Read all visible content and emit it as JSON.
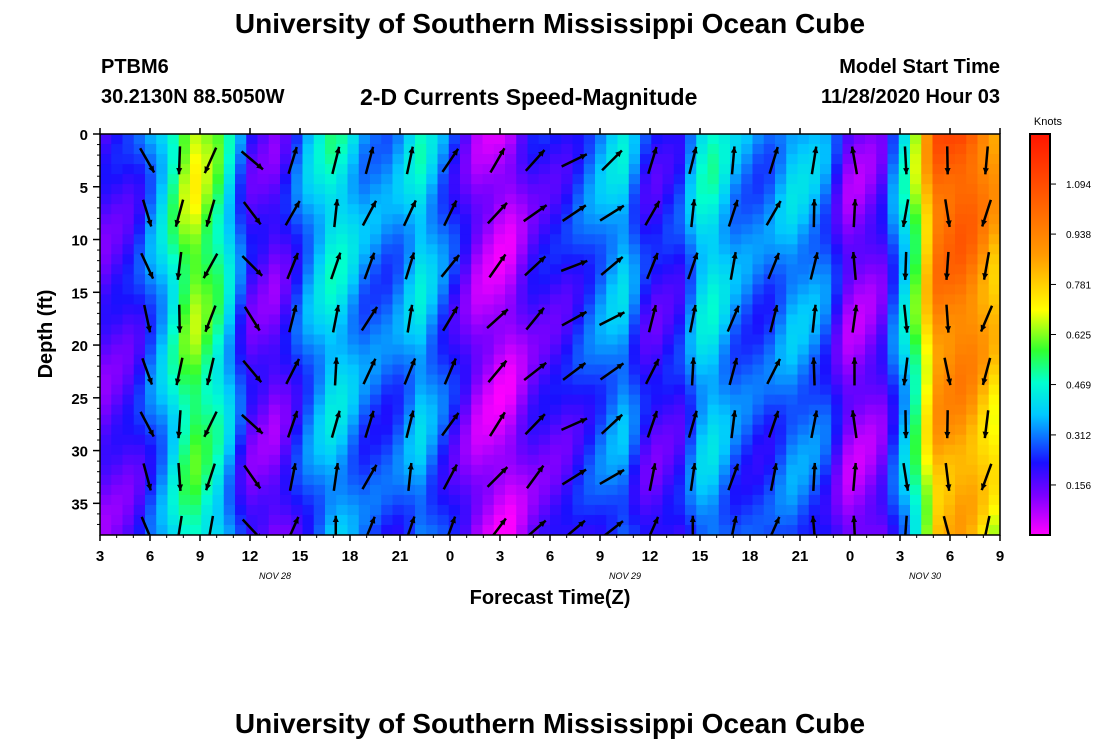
{
  "header": {
    "title": "University of Southern Mississippi Ocean Cube",
    "station": "PTBM6",
    "coordinates": "30.2130N 88.5050W",
    "subtitle": "2-D Currents Speed-Magnitude",
    "start_label": "Model Start Time",
    "start_value": "11/28/2020 Hour 03"
  },
  "footer": {
    "title": "University of Southern Mississippi Ocean Cube"
  },
  "chart_data": {
    "type": "heatmap",
    "xlabel": "Forecast Time(Z)",
    "ylabel": "Depth (ft)",
    "x_ticks": [
      "3",
      "6",
      "9",
      "12",
      "15",
      "18",
      "21",
      "0",
      "3",
      "6",
      "9",
      "12",
      "15",
      "18",
      "21",
      "0",
      "3",
      "6",
      "9"
    ],
    "date_labels": [
      {
        "text": "NOV  28",
        "after_tick": 3
      },
      {
        "text": "NOV  29",
        "after_tick": 10
      },
      {
        "text": "NOV  30",
        "after_tick": 16
      }
    ],
    "y_ticks": [
      "0",
      "5",
      "10",
      "15",
      "20",
      "25",
      "30",
      "35"
    ],
    "ylim": [
      0,
      38
    ],
    "colorbar": {
      "unit": "Knots",
      "ticks": [
        "1.094",
        "0.938",
        "0.781",
        "0.625",
        "0.469",
        "0.312",
        "0.156"
      ],
      "range": [
        0,
        1.25
      ]
    },
    "speed_by_time": [
      0.18,
      0.22,
      0.42,
      0.72,
      0.55,
      0.2,
      0.15,
      0.35,
      0.5,
      0.35,
      0.32,
      0.45,
      0.28,
      0.1,
      0.05,
      0.2,
      0.22,
      0.32,
      0.42,
      0.2,
      0.25,
      0.5,
      0.35,
      0.3,
      0.4,
      0.35,
      0.1,
      0.15,
      0.5,
      1.05,
      1.1,
      0.9
    ],
    "vector_columns": [
      {
        "x": 3.5,
        "dir": 160
      },
      {
        "x": 5.9,
        "dir": 185
      },
      {
        "x": 8.2,
        "dir": 200
      },
      {
        "x": 11.3,
        "dir": 140
      },
      {
        "x": 14.3,
        "dir": 20
      },
      {
        "x": 17.5,
        "dir": 10
      },
      {
        "x": 20.0,
        "dir": 25
      },
      {
        "x": 23.0,
        "dir": 15
      },
      {
        "x": 26.0,
        "dir": 30
      },
      {
        "x": 29.5,
        "dir": 40
      },
      {
        "x": 32.3,
        "dir": 45
      },
      {
        "x": 35.2,
        "dir": 60
      },
      {
        "x": 38.0,
        "dir": 55
      },
      {
        "x": 41.0,
        "dir": 20
      },
      {
        "x": 44.0,
        "dir": 10
      },
      {
        "x": 47.0,
        "dir": 15
      },
      {
        "x": 50.0,
        "dir": 20
      },
      {
        "x": 53.0,
        "dir": 5
      },
      {
        "x": 56.0,
        "dir": 0
      },
      {
        "x": 59.8,
        "dir": 180
      },
      {
        "x": 62.9,
        "dir": 175
      },
      {
        "x": 65.8,
        "dir": 195
      }
    ]
  }
}
